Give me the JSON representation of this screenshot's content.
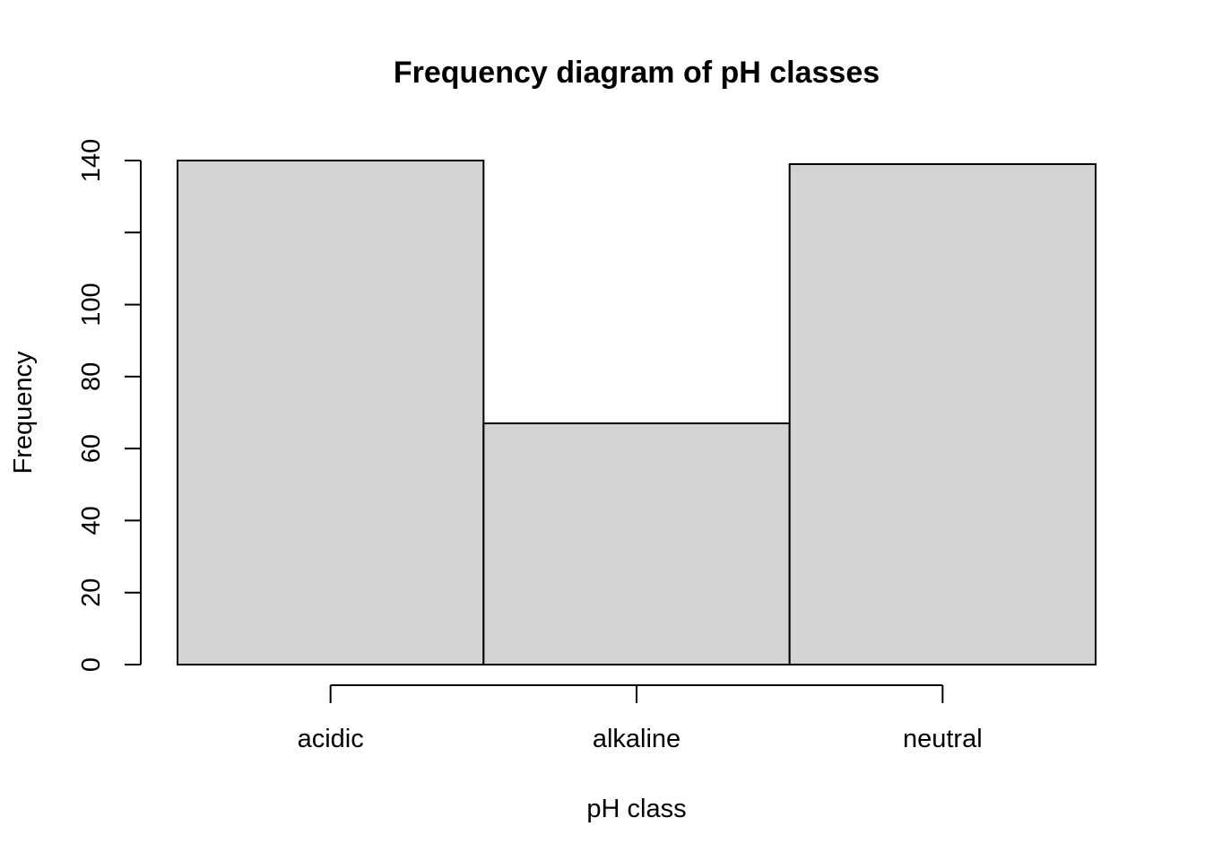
{
  "chart_data": {
    "type": "bar",
    "title": "Frequency diagram of pH classes",
    "xlabel": "pH class",
    "ylabel": "Frequency",
    "categories": [
      "acidic",
      "alkaline",
      "neutral"
    ],
    "values": [
      140,
      67,
      139
    ],
    "ylim": [
      0,
      140
    ],
    "yticks": [
      0,
      20,
      40,
      60,
      80,
      100,
      120,
      140
    ],
    "yticklabels": [
      "0",
      "20",
      "40",
      "60",
      "80",
      "100",
      "",
      "140"
    ],
    "bar_fill": "#d3d3d3",
    "bar_stroke": "#000000",
    "grid": false,
    "legend": "none"
  }
}
